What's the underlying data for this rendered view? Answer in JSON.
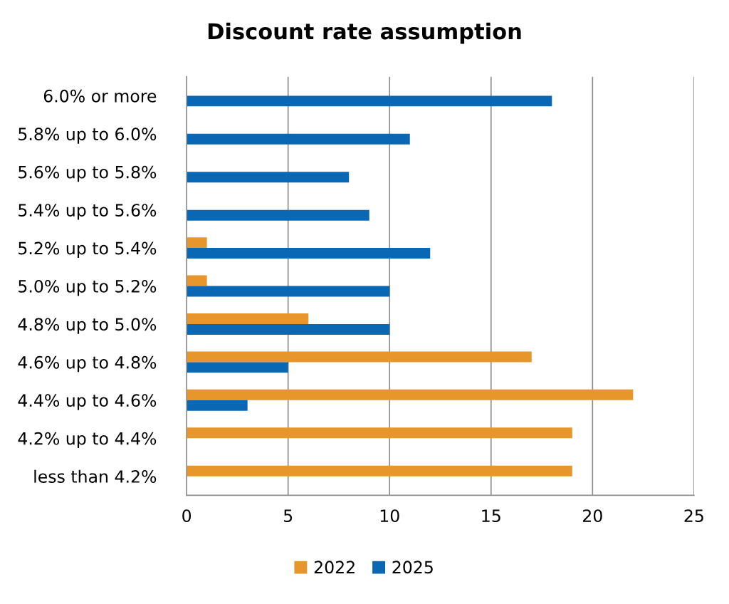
{
  "chart_data": {
    "type": "bar",
    "orientation": "horizontal",
    "title": "Discount rate assumption",
    "categories": [
      "6.0% or more",
      "5.8% up to 6.0%",
      "5.6% up to 5.8%",
      "5.4% up to 5.6%",
      "5.2% up to 5.4%",
      "5.0% up to 5.2%",
      "4.8% up to 5.0%",
      "4.6% up to 4.8%",
      "4.4% up to 4.6%",
      "4.2% up to 4.4%",
      "less than 4.2%"
    ],
    "series": [
      {
        "name": "2022",
        "color": "#e6962a",
        "values": [
          null,
          null,
          null,
          null,
          1,
          1,
          6,
          17,
          22,
          19,
          19
        ]
      },
      {
        "name": "2025",
        "color": "#0a67b3",
        "values": [
          18,
          11,
          8,
          9,
          12,
          10,
          10,
          5,
          3,
          null,
          null
        ]
      }
    ],
    "xlim": [
      0,
      25
    ],
    "xticks": [
      0,
      5,
      10,
      15,
      20,
      25
    ],
    "grid": "x",
    "legend": "bottom"
  }
}
